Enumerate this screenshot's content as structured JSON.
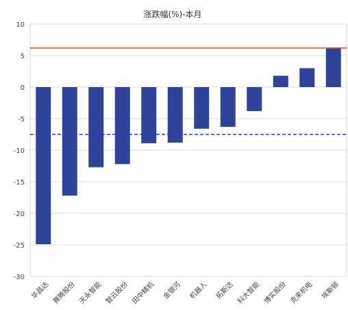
{
  "chart_data": {
    "type": "bar",
    "title": "涨跌幅(%)-本月",
    "categories": [
      "华昌达",
      "赛腾股份",
      "天永智能",
      "智云股份",
      "田中精机",
      "金银河",
      "机器人",
      "拓斯达",
      "科大智能",
      "博实股份",
      "克来机电",
      "埃斯顿"
    ],
    "values": [
      -24.9,
      -17.2,
      -12.7,
      -12.2,
      -8.9,
      -8.8,
      -6.6,
      -6.3,
      -3.8,
      1.8,
      3.0,
      6.2
    ],
    "ylim": [
      -30,
      10
    ],
    "yticks": [
      -30,
      -25,
      -20,
      -15,
      -10,
      -5,
      0,
      5,
      10
    ],
    "grid": true,
    "reference_lines": [
      {
        "value": 6.2,
        "style": "solid",
        "color": "#e8452c"
      },
      {
        "value": -7.5,
        "style": "dashed",
        "color": "#1f3fcf"
      }
    ],
    "bar_color": "#2e4399"
  }
}
